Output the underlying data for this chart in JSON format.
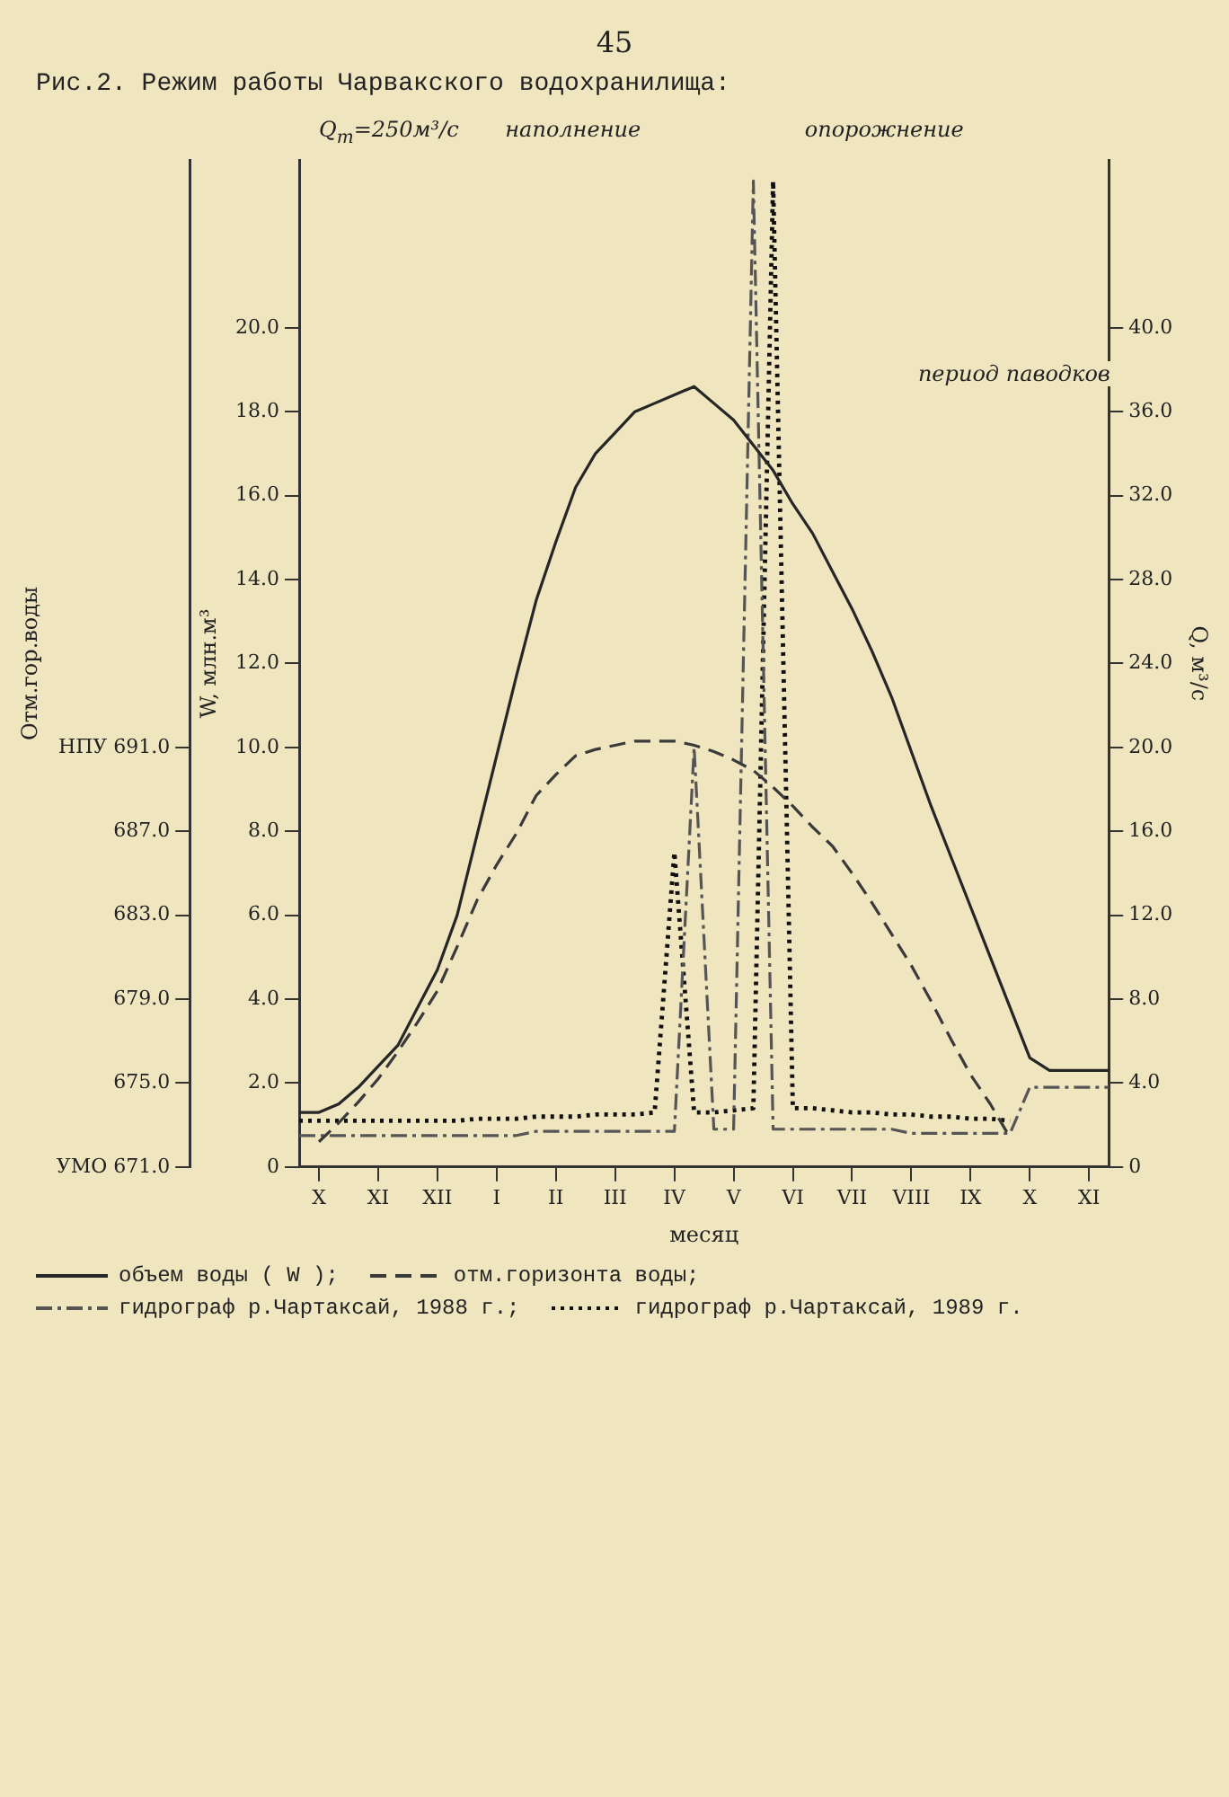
{
  "chart_data": {
    "type": "line",
    "title": "Рис.2. Режим работы Чарвакского водохранилища:",
    "xlabel": "месяц",
    "ylabel": "W, млн.м³",
    "y2label": "Q, м³/с",
    "y3label": "Отм.гор.воды",
    "categories": [
      null,
      "X",
      null,
      null,
      "XI",
      null,
      null,
      "XII",
      null,
      null,
      "I",
      null,
      null,
      "II",
      null,
      null,
      "III",
      null,
      null,
      "IV",
      null,
      null,
      "V",
      null,
      null,
      "VI",
      null,
      null,
      "VII",
      null,
      null,
      "VIII",
      null,
      null,
      "IX",
      null,
      null,
      "X",
      null,
      null,
      "XI",
      null
    ],
    "ylim": [
      0,
      24
    ],
    "yticks": [
      0,
      {
        "value": 2,
        "label": "2.0"
      },
      {
        "value": 4,
        "label": "4.0"
      },
      {
        "value": 6,
        "label": "6.0"
      },
      {
        "value": 8,
        "label": "8.0"
      },
      {
        "value": 10,
        "label": "10.0"
      },
      {
        "value": 12,
        "label": "12.0"
      },
      {
        "value": 14,
        "label": "14.0"
      },
      {
        "value": 16,
        "label": "16.0"
      },
      {
        "value": 18,
        "label": "18.0"
      },
      {
        "value": 20,
        "label": "20.0"
      }
    ],
    "y2lim": [
      0,
      48
    ],
    "y2ticks": [
      0,
      {
        "value": 4,
        "label": "4.0"
      },
      {
        "value": 8,
        "label": "8.0"
      },
      {
        "value": 12,
        "label": "12.0"
      },
      {
        "value": 16,
        "label": "16.0"
      },
      {
        "value": 20,
        "label": "20.0"
      },
      {
        "value": 24,
        "label": "24.0"
      },
      {
        "value": 28,
        "label": "28.0"
      },
      {
        "value": 32,
        "label": "32.0"
      },
      {
        "value": 36,
        "label": "36.0"
      },
      {
        "value": 40,
        "label": "40.0"
      }
    ],
    "y3lim": [
      671,
      719
    ],
    "y3ticks": [
      {
        "value": 671,
        "label": "УМО 671.0"
      },
      {
        "value": 675,
        "label": "675.0"
      },
      {
        "value": 679,
        "label": "679.0"
      },
      {
        "value": 683,
        "label": "683.0"
      },
      {
        "value": 687,
        "label": "687.0"
      },
      {
        "value": 691,
        "label": "НПУ 691.0"
      }
    ],
    "grid": false,
    "legend": "bottom",
    "series": [
      {
        "name": "объем воды ( W );",
        "color": "#262626",
        "line_style": "solid",
        "values": [
          1.3,
          1.3,
          1.5,
          1.9,
          2.4,
          2.9,
          3.8,
          4.7,
          6.0,
          7.9,
          9.8,
          11.7,
          13.5,
          14.9,
          16.2,
          17.0,
          17.5,
          18.0,
          18.2,
          18.4,
          18.6,
          18.2,
          17.8,
          17.2,
          16.6,
          15.8,
          15.1,
          14.2,
          13.3,
          12.3,
          11.2,
          9.9,
          8.6,
          7.4,
          6.2,
          5.0,
          3.8,
          2.6,
          2.3,
          2.3,
          2.3,
          2.3
        ]
      },
      {
        "name": "отм.горизонта воды;",
        "color": "#3a3a3a",
        "line_style": "dashed",
        "axis": "y3",
        "values": [
          null,
          672.2,
          673.1,
          674.1,
          675.2,
          676.5,
          677.9,
          679.4,
          681.5,
          683.7,
          685.4,
          686.9,
          688.7,
          689.7,
          690.6,
          690.9,
          691.1,
          691.3,
          691.3,
          691.3,
          691.1,
          690.8,
          690.4,
          689.9,
          689.1,
          688.2,
          687.2,
          686.3,
          685.0,
          683.6,
          682.1,
          680.6,
          678.9,
          677.1,
          675.4,
          674.0,
          672.4,
          null,
          null,
          null,
          null,
          null
        ]
      },
      {
        "name": "гидрограф р.Чартаксай, 1988 г.;",
        "color": "#555555",
        "line_style": "dashdot",
        "axis": "y2",
        "values": [
          1.5,
          1.5,
          1.5,
          1.5,
          1.5,
          1.5,
          1.5,
          1.5,
          1.5,
          1.5,
          1.5,
          1.5,
          1.7,
          1.7,
          1.7,
          1.7,
          1.7,
          1.7,
          1.7,
          1.7,
          20,
          1.8,
          1.8,
          47,
          1.8,
          1.8,
          1.8,
          1.8,
          1.8,
          1.8,
          1.8,
          1.6,
          1.6,
          1.6,
          1.6,
          1.6,
          1.6,
          3.8,
          3.8,
          3.8,
          3.8,
          3.8
        ]
      },
      {
        "name": "гидрограф р.Чартаксай, 1989 г.",
        "color": "#111111",
        "line_style": "dotted",
        "axis": "y2",
        "values": [
          2.2,
          2.2,
          2.2,
          2.2,
          2.2,
          2.2,
          2.2,
          2.2,
          2.2,
          2.3,
          2.3,
          2.3,
          2.4,
          2.4,
          2.4,
          2.5,
          2.5,
          2.5,
          2.6,
          15,
          2.6,
          2.6,
          2.7,
          2.8,
          47,
          2.8,
          2.8,
          2.7,
          2.6,
          2.6,
          2.5,
          2.5,
          2.4,
          2.4,
          2.3,
          2.3,
          2.2,
          null,
          null,
          null,
          null,
          null
        ]
      }
    ],
    "annotations": [
      "45",
      "наполнение",
      "опорожнение",
      "период паводков",
      "Q$_{m}$=250м³/с"
    ]
  }
}
